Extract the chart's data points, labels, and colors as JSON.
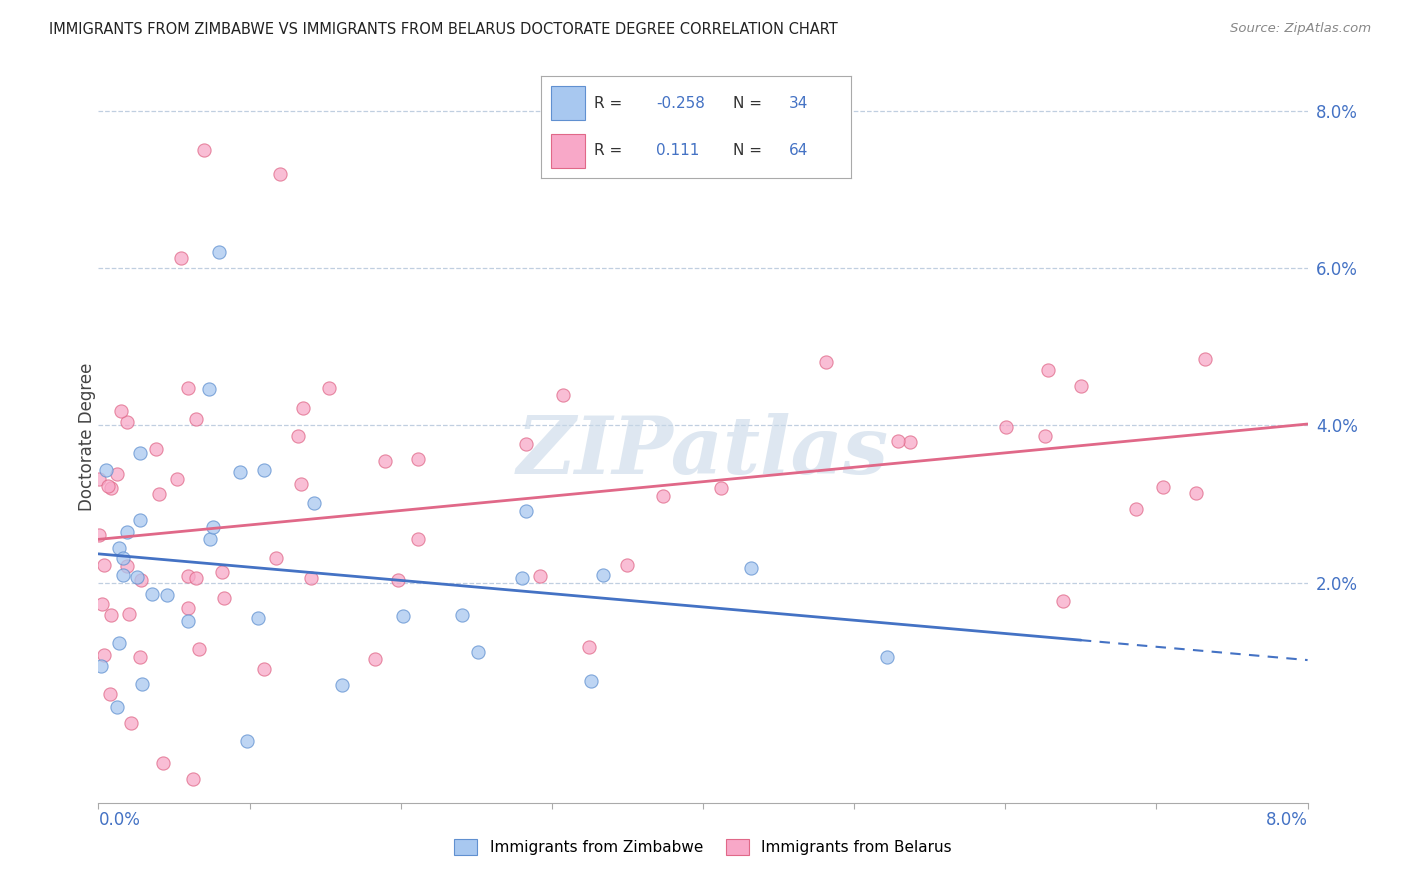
{
  "title": "IMMIGRANTS FROM ZIMBABWE VS IMMIGRANTS FROM BELARUS DOCTORATE DEGREE CORRELATION CHART",
  "source": "Source: ZipAtlas.com",
  "ylabel": "Doctorate Degree",
  "xlim": [
    0.0,
    0.08
  ],
  "ylim": [
    -0.008,
    0.085
  ],
  "color_zimbabwe": "#a8c8f0",
  "color_belarus": "#f8a8c8",
  "edge_color_zimbabwe": "#6090d0",
  "edge_color_belarus": "#e06888",
  "line_color_zimbabwe": "#4472c4",
  "line_color_belarus": "#e06888",
  "watermark_color": "#c8d8e8",
  "background_color": "#ffffff",
  "grid_color": "#c0cfe0",
  "right_tick_color": "#4472c4",
  "R_zim": -0.258,
  "N_zim": 34,
  "R_bel": 0.111,
  "N_bel": 64,
  "seed_zim": 42,
  "seed_bel": 99
}
